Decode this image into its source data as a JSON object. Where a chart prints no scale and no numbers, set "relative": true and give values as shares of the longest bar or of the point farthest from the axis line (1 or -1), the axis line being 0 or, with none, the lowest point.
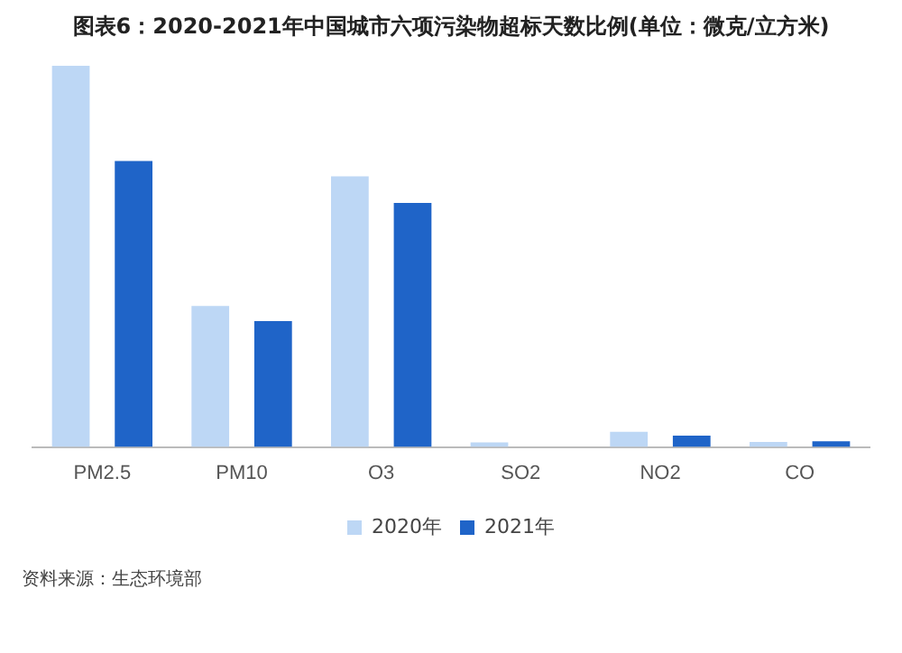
{
  "chart_data": {
    "type": "bar",
    "title": "图表6：2020-2021年中国城市六项污染物超标天数比例(单位：微克/立方米)",
    "categories": [
      "PM2.5",
      "PM10",
      "O3",
      "SO2",
      "NO2",
      "CO"
    ],
    "series": [
      {
        "name": "2020年",
        "color": "#bdd7f5",
        "values": [
          1,
          0.37,
          0.71,
          0.012,
          0.04,
          0.013
        ]
      },
      {
        "name": "2021年",
        "color": "#1f64c8",
        "values": [
          0.75,
          0.33,
          0.64,
          0,
          0.03,
          0.015
        ]
      }
    ],
    "relative": true,
    "grid": false,
    "legend": "bottom",
    "annotations": [
      "资料来源：生态环境部"
    ]
  }
}
